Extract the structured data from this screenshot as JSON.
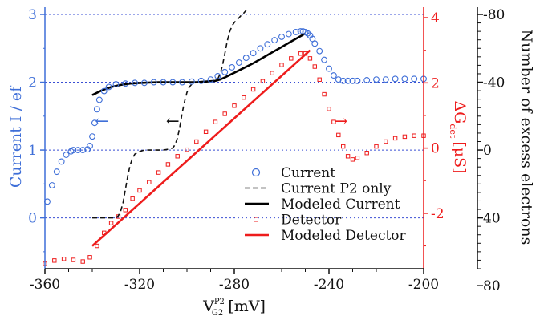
{
  "chart_data": {
    "type": "scatter",
    "x_axis": {
      "label_main": "V",
      "label_sub": "G2",
      "label_sup": "P2",
      "label_unit": " [mV]",
      "range": [
        -360,
        -200
      ],
      "ticks": [
        -360,
        -320,
        -280,
        -240,
        -200
      ],
      "tick_labels": [
        "-360",
        "-320",
        "-280",
        "-240",
        "-200"
      ]
    },
    "y_left": {
      "label": "Current  I / ef",
      "range": [
        -0.75,
        3
      ],
      "ticks": [
        0,
        1,
        2,
        3
      ],
      "tick_labels": [
        "0",
        "1",
        "2",
        "3"
      ],
      "color": "#3f6fd8"
    },
    "y_right": {
      "label_main": "ΔG",
      "label_sub": "det",
      "label_unit": "[μS]",
      "range": [
        -3.7,
        4.1
      ],
      "ticks": [
        -2,
        0,
        2,
        4
      ],
      "tick_labels": [
        "-2",
        "0",
        "2",
        "4"
      ],
      "color": "#ee1c1c"
    },
    "y_far_right": {
      "label": "Number of excess electrons",
      "reversed": true,
      "ticks": [
        -80,
        -40,
        0,
        40,
        80
      ],
      "tick_labels": [
        "-80",
        "-40",
        "0",
        "40",
        "80"
      ],
      "color": "#111111"
    },
    "grid": {
      "horizontal_dotted_at_left_values": [
        0,
        1,
        2,
        3
      ],
      "color": "#3a4fd4"
    },
    "series": [
      {
        "name": "Current",
        "axis": "left",
        "style": "open-circle",
        "color": "#3f6fd8",
        "x": [
          -359,
          -357,
          -355,
          -353,
          -351,
          -349,
          -348,
          -346,
          -344,
          -342,
          -341,
          -340,
          -339,
          -338,
          -337,
          -335,
          -333,
          -330,
          -326,
          -322,
          -318,
          -314,
          -310,
          -306,
          -302,
          -298,
          -294,
          -290,
          -287,
          -284,
          -281,
          -278,
          -275,
          -272,
          -269,
          -266,
          -263,
          -260,
          -257,
          -254,
          -252,
          -251,
          -250,
          -249,
          -248,
          -247,
          -246,
          -244,
          -242,
          -240,
          -238,
          -236,
          -234,
          -232,
          -230,
          -228,
          -224,
          -220,
          -216,
          -212,
          -208,
          -204,
          -200
        ],
        "y": [
          0.24,
          0.48,
          0.68,
          0.83,
          0.93,
          0.98,
          1.0,
          1.0,
          1.0,
          1.01,
          1.06,
          1.2,
          1.4,
          1.6,
          1.74,
          1.87,
          1.93,
          1.97,
          1.98,
          1.99,
          1.99,
          2.0,
          2.0,
          2.0,
          2.0,
          2.01,
          2.02,
          2.04,
          2.09,
          2.15,
          2.22,
          2.29,
          2.36,
          2.43,
          2.5,
          2.56,
          2.62,
          2.67,
          2.71,
          2.74,
          2.75,
          2.75,
          2.74,
          2.72,
          2.69,
          2.64,
          2.57,
          2.46,
          2.33,
          2.2,
          2.1,
          2.04,
          2.02,
          2.02,
          2.02,
          2.02,
          2.03,
          2.04,
          2.04,
          2.05,
          2.05,
          2.05,
          2.05
        ]
      },
      {
        "name": "Current P2 only",
        "axis": "left",
        "style": "dashed",
        "color": "#111111",
        "x": [
          -340,
          -330,
          -329,
          -328,
          -327,
          -326,
          -325,
          -324,
          -323,
          -322,
          -320,
          -318,
          -316,
          -314,
          -312,
          -310,
          -308,
          -306,
          -305,
          -304,
          -303,
          -302,
          -301,
          -300,
          -299,
          -298,
          -296,
          -294,
          -292,
          -290,
          -288,
          -287,
          -286,
          -285,
          -284,
          -283,
          -282,
          -281,
          -280,
          -279,
          -278,
          -277,
          -276,
          -275
        ],
        "y": [
          0.0,
          0.0,
          0.03,
          0.1,
          0.22,
          0.42,
          0.62,
          0.78,
          0.88,
          0.94,
          0.98,
          1.0,
          1.0,
          1.0,
          1.0,
          1.0,
          1.01,
          1.03,
          1.08,
          1.18,
          1.35,
          1.55,
          1.72,
          1.85,
          1.93,
          1.97,
          2.0,
          2.0,
          2.0,
          2.0,
          2.02,
          2.05,
          2.12,
          2.25,
          2.42,
          2.6,
          2.74,
          2.83,
          2.88,
          2.92,
          2.95,
          2.99,
          3.02,
          3.06
        ]
      },
      {
        "name": "Modeled Current",
        "axis": "left",
        "style": "solid",
        "color": "#000000",
        "x": [
          -340,
          -336,
          -332,
          -328,
          -324,
          -320,
          -312,
          -304,
          -296,
          -292,
          -288,
          -286,
          -284,
          -280,
          -276,
          -272,
          -268,
          -264,
          -260,
          -256,
          -252,
          -250
        ],
        "y": [
          1.81,
          1.88,
          1.93,
          1.96,
          1.98,
          1.99,
          2.0,
          2.0,
          2.0,
          2.01,
          2.02,
          2.04,
          2.07,
          2.14,
          2.21,
          2.28,
          2.36,
          2.44,
          2.52,
          2.6,
          2.68,
          2.72
        ]
      },
      {
        "name": "Detector",
        "axis": "right",
        "style": "open-square",
        "color": "#ee1c1c",
        "x": [
          -360,
          -356,
          -352,
          -348,
          -344,
          -341,
          -338,
          -335,
          -332,
          -329,
          -326,
          -323,
          -320,
          -316,
          -312,
          -308,
          -304,
          -300,
          -296,
          -292,
          -288,
          -284,
          -280,
          -276,
          -272,
          -268,
          -264,
          -260,
          -256,
          -252,
          -250,
          -248,
          -246,
          -244,
          -242,
          -240,
          -238,
          -236,
          -234,
          -232,
          -230,
          -228,
          -224,
          -220,
          -216,
          -212,
          -208,
          -204,
          -200
        ],
        "y": [
          -3.55,
          -3.45,
          -3.4,
          -3.43,
          -3.48,
          -3.35,
          -3.0,
          -2.6,
          -2.3,
          -2.1,
          -1.9,
          -1.55,
          -1.3,
          -1.05,
          -0.75,
          -0.5,
          -0.25,
          -0.05,
          0.2,
          0.5,
          0.8,
          1.05,
          1.3,
          1.55,
          1.8,
          2.05,
          2.3,
          2.55,
          2.75,
          2.9,
          2.9,
          2.75,
          2.5,
          2.1,
          1.65,
          1.2,
          0.8,
          0.4,
          0.05,
          -0.25,
          -0.35,
          -0.3,
          -0.15,
          0.05,
          0.2,
          0.3,
          0.35,
          0.38,
          0.38
        ]
      },
      {
        "name": "Modeled Detector",
        "axis": "right",
        "style": "solid",
        "color": "#ee1c1c",
        "x": [
          -340,
          -248
        ],
        "y": [
          -3.0,
          3.0
        ]
      }
    ],
    "annotations": [
      {
        "text": "←",
        "x": -336,
        "y_left": 1.42,
        "color": "#3f6fd8"
      },
      {
        "text": "←",
        "x": -306,
        "y_left": 1.42,
        "color": "#111111"
      },
      {
        "text": "→",
        "x": -235,
        "y_left": 1.42,
        "color": "#ee1c1c"
      }
    ],
    "legend": {
      "placement": "bottom-right"
    }
  }
}
